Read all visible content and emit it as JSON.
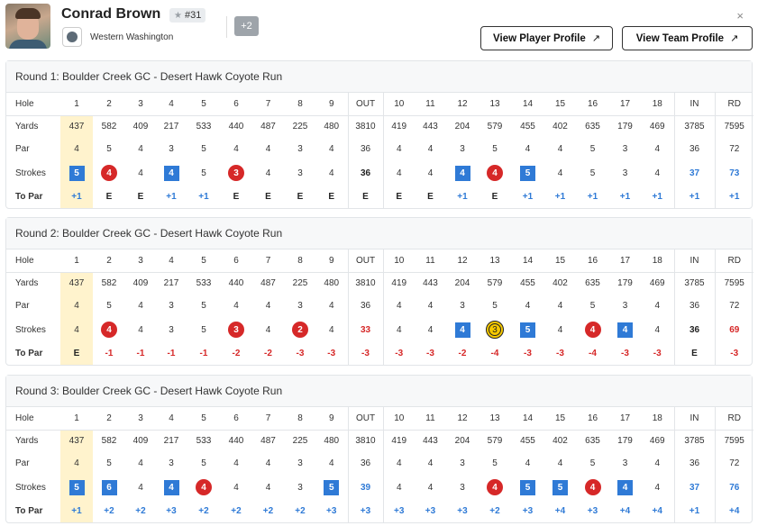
{
  "player": {
    "name": "Conrad Brown",
    "rank": "#31",
    "school": "Western Washington",
    "more": "+2",
    "close": "×",
    "buttons": {
      "player_profile": "View Player Profile",
      "team_profile": "View Team Profile"
    }
  },
  "colors": {
    "over": "#2f7ad6",
    "under": "#d62828",
    "eagle": "#f5c800",
    "highlight": "#fff3cd"
  },
  "rows": {
    "hole": "Hole",
    "yards": "Yards",
    "par": "Par",
    "strokes": "Strokes",
    "topar": "To Par"
  },
  "columns": [
    "1",
    "2",
    "3",
    "4",
    "5",
    "6",
    "7",
    "8",
    "9",
    "OUT",
    "10",
    "11",
    "12",
    "13",
    "14",
    "15",
    "16",
    "17",
    "18",
    "IN",
    "RD"
  ],
  "yards": [
    "437",
    "582",
    "409",
    "217",
    "533",
    "440",
    "487",
    "225",
    "480",
    "3810",
    "419",
    "443",
    "204",
    "579",
    "455",
    "402",
    "635",
    "179",
    "469",
    "3785",
    "7595"
  ],
  "par": [
    "4",
    "5",
    "4",
    "3",
    "5",
    "4",
    "4",
    "3",
    "4",
    "36",
    "4",
    "4",
    "3",
    "5",
    "4",
    "4",
    "5",
    "3",
    "4",
    "36",
    "72"
  ],
  "rounds": [
    {
      "title": "Round 1: Boulder Creek GC - Desert Hawk Coyote Run",
      "strokes": [
        "5",
        "4",
        "4",
        "4",
        "5",
        "3",
        "4",
        "3",
        "4",
        "36",
        "4",
        "4",
        "4",
        "4",
        "5",
        "4",
        "5",
        "3",
        "4",
        "37",
        "73"
      ],
      "topar": [
        "+1",
        "E",
        "E",
        "+1",
        "+1",
        "E",
        "E",
        "E",
        "E",
        "E",
        "E",
        "E",
        "+1",
        "E",
        "+1",
        "+1",
        "+1",
        "+1",
        "+1",
        "+1",
        "+1"
      ]
    },
    {
      "title": "Round 2: Boulder Creek GC - Desert Hawk Coyote Run",
      "strokes": [
        "4",
        "4",
        "4",
        "3",
        "5",
        "3",
        "4",
        "2",
        "4",
        "33",
        "4",
        "4",
        "4",
        "3",
        "5",
        "4",
        "4",
        "4",
        "4",
        "36",
        "69"
      ],
      "topar": [
        "E",
        "-1",
        "-1",
        "-1",
        "-1",
        "-2",
        "-2",
        "-3",
        "-3",
        "-3",
        "-3",
        "-3",
        "-2",
        "-4",
        "-3",
        "-3",
        "-4",
        "-3",
        "-3",
        "E",
        "-3"
      ]
    },
    {
      "title": "Round 3: Boulder Creek GC - Desert Hawk Coyote Run",
      "strokes": [
        "5",
        "6",
        "4",
        "4",
        "4",
        "4",
        "4",
        "3",
        "5",
        "39",
        "4",
        "4",
        "3",
        "4",
        "5",
        "5",
        "4",
        "4",
        "4",
        "37",
        "76"
      ],
      "topar": [
        "+1",
        "+2",
        "+2",
        "+3",
        "+2",
        "+2",
        "+2",
        "+2",
        "+3",
        "+3",
        "+3",
        "+3",
        "+3",
        "+2",
        "+3",
        "+4",
        "+3",
        "+4",
        "+4",
        "+1",
        "+4"
      ]
    }
  ]
}
